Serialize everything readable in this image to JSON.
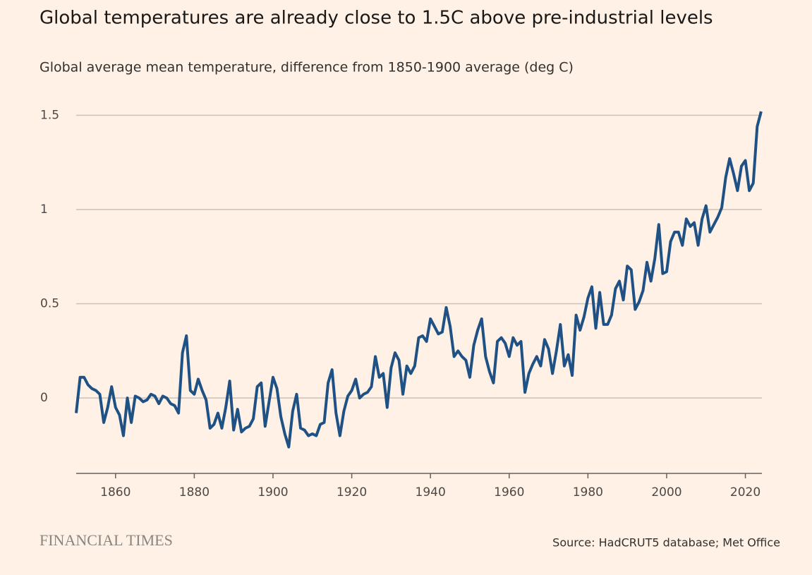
{
  "chart_data": {
    "type": "line",
    "title": "Global temperatures are already close to 1.5C above pre-industrial levels",
    "subtitle": "Global average mean temperature, difference from 1850-1900 average (deg C)",
    "source": "Source: HadCRUT5 database; Met Office",
    "brand": "FINANCIAL TIMES",
    "color": "#1f5185",
    "grid": true,
    "xlim": [
      1850,
      2024.2
    ],
    "ylim": [
      -0.4,
      1.55
    ],
    "xticks": [
      1860,
      1880,
      1900,
      1920,
      1940,
      1960,
      1980,
      2000,
      2020
    ],
    "yticks": [
      0,
      0.5,
      1,
      1.5
    ],
    "x": [
      1850,
      1851,
      1852,
      1853,
      1854,
      1855,
      1856,
      1857,
      1858,
      1859,
      1860,
      1861,
      1862,
      1863,
      1864,
      1865,
      1866,
      1867,
      1868,
      1869,
      1870,
      1871,
      1872,
      1873,
      1874,
      1875,
      1876,
      1877,
      1878,
      1879,
      1880,
      1881,
      1882,
      1883,
      1884,
      1885,
      1886,
      1887,
      1888,
      1889,
      1890,
      1891,
      1892,
      1893,
      1894,
      1895,
      1896,
      1897,
      1898,
      1899,
      1900,
      1901,
      1902,
      1903,
      1904,
      1905,
      1906,
      1907,
      1908,
      1909,
      1910,
      1911,
      1912,
      1913,
      1914,
      1915,
      1916,
      1917,
      1918,
      1919,
      1920,
      1921,
      1922,
      1923,
      1924,
      1925,
      1926,
      1927,
      1928,
      1929,
      1930,
      1931,
      1932,
      1933,
      1934,
      1935,
      1936,
      1937,
      1938,
      1939,
      1940,
      1941,
      1942,
      1943,
      1944,
      1945,
      1946,
      1947,
      1948,
      1949,
      1950,
      1951,
      1952,
      1953,
      1954,
      1955,
      1956,
      1957,
      1958,
      1959,
      1960,
      1961,
      1962,
      1963,
      1964,
      1965,
      1966,
      1967,
      1968,
      1969,
      1970,
      1971,
      1972,
      1973,
      1974,
      1975,
      1976,
      1977,
      1978,
      1979,
      1980,
      1981,
      1982,
      1983,
      1984,
      1985,
      1986,
      1987,
      1988,
      1989,
      1990,
      1991,
      1992,
      1993,
      1994,
      1995,
      1996,
      1997,
      1998,
      1999,
      2000,
      2001,
      2002,
      2003,
      2004,
      2005,
      2006,
      2007,
      2008,
      2009,
      2010,
      2011,
      2012,
      2013,
      2014,
      2015,
      2016,
      2017,
      2018,
      2019,
      2020,
      2021,
      2022,
      2023,
      2024
    ],
    "values": [
      -0.08,
      0.11,
      0.11,
      0.07,
      0.05,
      0.04,
      0.02,
      -0.13,
      -0.05,
      0.06,
      -0.05,
      -0.09,
      -0.2,
      0.0,
      -0.13,
      0.01,
      0.0,
      -0.02,
      -0.01,
      0.02,
      0.01,
      -0.03,
      0.01,
      0.0,
      -0.03,
      -0.04,
      -0.08,
      0.24,
      0.33,
      0.04,
      0.02,
      0.1,
      0.04,
      -0.01,
      -0.16,
      -0.14,
      -0.08,
      -0.16,
      -0.05,
      0.09,
      -0.17,
      -0.06,
      -0.18,
      -0.16,
      -0.15,
      -0.11,
      0.06,
      0.08,
      -0.15,
      -0.02,
      0.11,
      0.05,
      -0.1,
      -0.19,
      -0.26,
      -0.07,
      0.02,
      -0.16,
      -0.17,
      -0.2,
      -0.19,
      -0.2,
      -0.14,
      -0.13,
      0.08,
      0.15,
      -0.08,
      -0.2,
      -0.07,
      0.01,
      0.04,
      0.1,
      0.0,
      0.02,
      0.03,
      0.06,
      0.22,
      0.11,
      0.13,
      -0.05,
      0.16,
      0.24,
      0.2,
      0.02,
      0.17,
      0.13,
      0.17,
      0.32,
      0.33,
      0.3,
      0.42,
      0.38,
      0.34,
      0.35,
      0.48,
      0.38,
      0.22,
      0.25,
      0.22,
      0.2,
      0.11,
      0.28,
      0.36,
      0.42,
      0.22,
      0.14,
      0.08,
      0.3,
      0.32,
      0.29,
      0.22,
      0.32,
      0.28,
      0.3,
      0.03,
      0.13,
      0.18,
      0.22,
      0.17,
      0.31,
      0.26,
      0.13,
      0.25,
      0.39,
      0.17,
      0.23,
      0.12,
      0.44,
      0.36,
      0.43,
      0.53,
      0.59,
      0.37,
      0.56,
      0.39,
      0.39,
      0.44,
      0.58,
      0.62,
      0.52,
      0.7,
      0.68,
      0.47,
      0.51,
      0.57,
      0.72,
      0.62,
      0.74,
      0.92,
      0.66,
      0.67,
      0.83,
      0.88,
      0.88,
      0.81,
      0.95,
      0.91,
      0.93,
      0.81,
      0.95,
      1.02,
      0.88,
      0.92,
      0.96,
      1.01,
      1.17,
      1.27,
      1.19,
      1.1,
      1.23,
      1.26,
      1.1,
      1.14,
      1.44,
      1.52
    ]
  }
}
